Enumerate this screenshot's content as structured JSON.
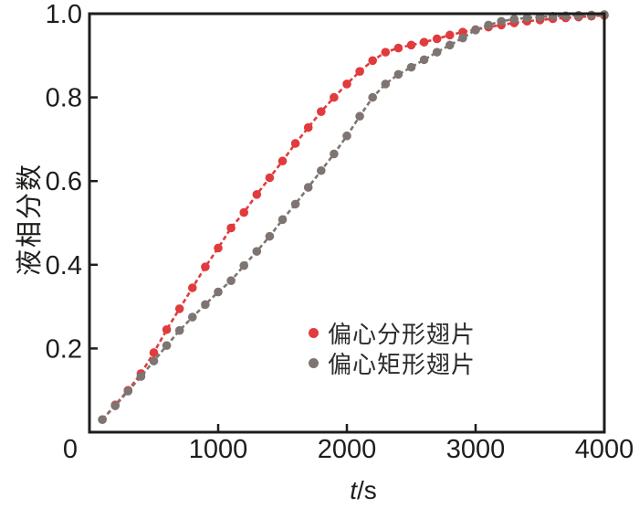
{
  "figure": {
    "background": "#ffffff",
    "axis_color": "#1d1d1b",
    "xlabel_var": "t",
    "xlabel_unit": "/s"
  },
  "chart_data": {
    "type": "line",
    "title": "",
    "xlabel": "t/s",
    "ylabel": "液相分数",
    "xlim": [
      0,
      4000
    ],
    "ylim": [
      0,
      1.0
    ],
    "xticks": [
      0,
      1000,
      2000,
      3000,
      4000
    ],
    "yticks": [
      0.2,
      0.4,
      0.6,
      0.8,
      1.0
    ],
    "grid": false,
    "legend_position": "inside lower-right",
    "marker": "circle",
    "line_style": "dashed",
    "x": [
      100,
      200,
      300,
      400,
      500,
      600,
      700,
      800,
      900,
      1000,
      1100,
      1200,
      1300,
      1400,
      1500,
      1600,
      1700,
      1800,
      1900,
      2000,
      2100,
      2200,
      2300,
      2400,
      2500,
      2600,
      2700,
      2800,
      2900,
      3000,
      3100,
      3200,
      3300,
      3400,
      3500,
      3600,
      3700,
      3800,
      3900,
      4000
    ],
    "series": [
      {
        "name": "偏心分形翅片",
        "color": "#e13b3d",
        "values": [
          0.03,
          0.065,
          0.1,
          0.14,
          0.19,
          0.245,
          0.295,
          0.345,
          0.395,
          0.44,
          0.488,
          0.525,
          0.568,
          0.608,
          0.648,
          0.69,
          0.728,
          0.766,
          0.8,
          0.832,
          0.862,
          0.888,
          0.908,
          0.918,
          0.925,
          0.932,
          0.94,
          0.949,
          0.956,
          0.962,
          0.968,
          0.973,
          0.978,
          0.982,
          0.985,
          0.988,
          0.99,
          0.992,
          0.994,
          0.996
        ]
      },
      {
        "name": "偏心矩形翅片",
        "color": "#7e7572",
        "values": [
          0.03,
          0.063,
          0.098,
          0.133,
          0.17,
          0.207,
          0.243,
          0.275,
          0.305,
          0.335,
          0.362,
          0.398,
          0.432,
          0.468,
          0.508,
          0.545,
          0.585,
          0.625,
          0.665,
          0.708,
          0.755,
          0.8,
          0.832,
          0.855,
          0.872,
          0.89,
          0.908,
          0.925,
          0.942,
          0.961,
          0.973,
          0.982,
          0.987,
          0.99,
          0.992,
          0.994,
          0.995,
          0.996,
          0.997,
          0.998
        ]
      }
    ]
  }
}
